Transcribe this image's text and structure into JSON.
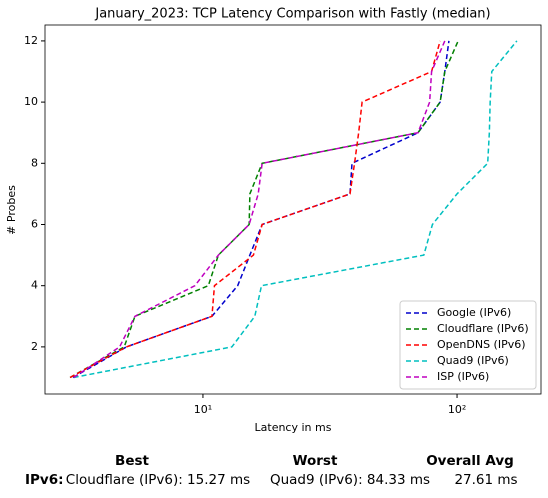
{
  "chart_data": {
    "type": "line",
    "title": "January_2023: TCP Latency Comparison with Fastly (median)",
    "xlabel": "Latency in ms",
    "ylabel": "# Probes",
    "xscale": "log",
    "xlim": [
      2.39,
      214
    ],
    "xticks": [
      {
        "value": 10,
        "label": "10¹"
      },
      {
        "value": 100,
        "label": "10²"
      }
    ],
    "ylim": [
      0.46,
      12.52
    ],
    "yticks": [
      2,
      4,
      6,
      8,
      10,
      12
    ],
    "legend": "lower right",
    "series": [
      {
        "name": "Google (IPv6)",
        "color": "#0000cc",
        "x": [
          3.08,
          5.0,
          10.85,
          13.7,
          15.3,
          17.1,
          37.9,
          38.6,
          70.2,
          85.8,
          89.5,
          92.9
        ],
        "values": [
          1,
          2,
          3,
          4,
          5,
          6,
          7,
          8,
          9,
          10,
          11,
          12
        ]
      },
      {
        "name": "Cloudflare (IPv6)",
        "color": "#008000",
        "x": [
          3.0,
          4.9,
          5.4,
          10.5,
          11.5,
          15.2,
          15.3,
          17.1,
          70.2,
          85.8,
          89.5,
          101
        ],
        "values": [
          1,
          2,
          3,
          4,
          5,
          6,
          7,
          8,
          9,
          10,
          11,
          12
        ]
      },
      {
        "name": "OpenDNS (IPv6)",
        "color": "#ff0000",
        "x": [
          3.0,
          5.0,
          10.85,
          11.1,
          15.8,
          17.1,
          37.9,
          39.5,
          41,
          42.3,
          79.4,
          85.8
        ],
        "values": [
          1,
          2,
          3,
          4,
          5,
          6,
          7,
          8,
          9,
          10,
          11,
          12
        ]
      },
      {
        "name": "Quad9 (IPv6)",
        "color": "#00bfbf",
        "x": [
          3.1,
          13,
          16,
          17,
          74,
          80,
          100,
          132,
          134,
          135,
          137,
          172
        ],
        "values": [
          1,
          2,
          3,
          4,
          5,
          6,
          7,
          8,
          9,
          10,
          11,
          12
        ]
      },
      {
        "name": "ISP (IPv6)",
        "color": "#bf00bf",
        "x": [
          3.1,
          4.7,
          5.4,
          9.3,
          11.5,
          15.2,
          16.5,
          17.1,
          70.2,
          78,
          79.4,
          89.5
        ],
        "values": [
          1,
          2,
          3,
          4,
          5,
          6,
          7,
          8,
          9,
          10,
          11,
          12
        ]
      }
    ]
  },
  "summary": {
    "headers": [
      "Best",
      "Worst",
      "Overall Avg"
    ],
    "row_label": "IPv6:",
    "best": "Cloudflare (IPv6): 15.27 ms",
    "worst": "Quad9 (IPv6): 84.33 ms",
    "avg": "27.61 ms"
  }
}
